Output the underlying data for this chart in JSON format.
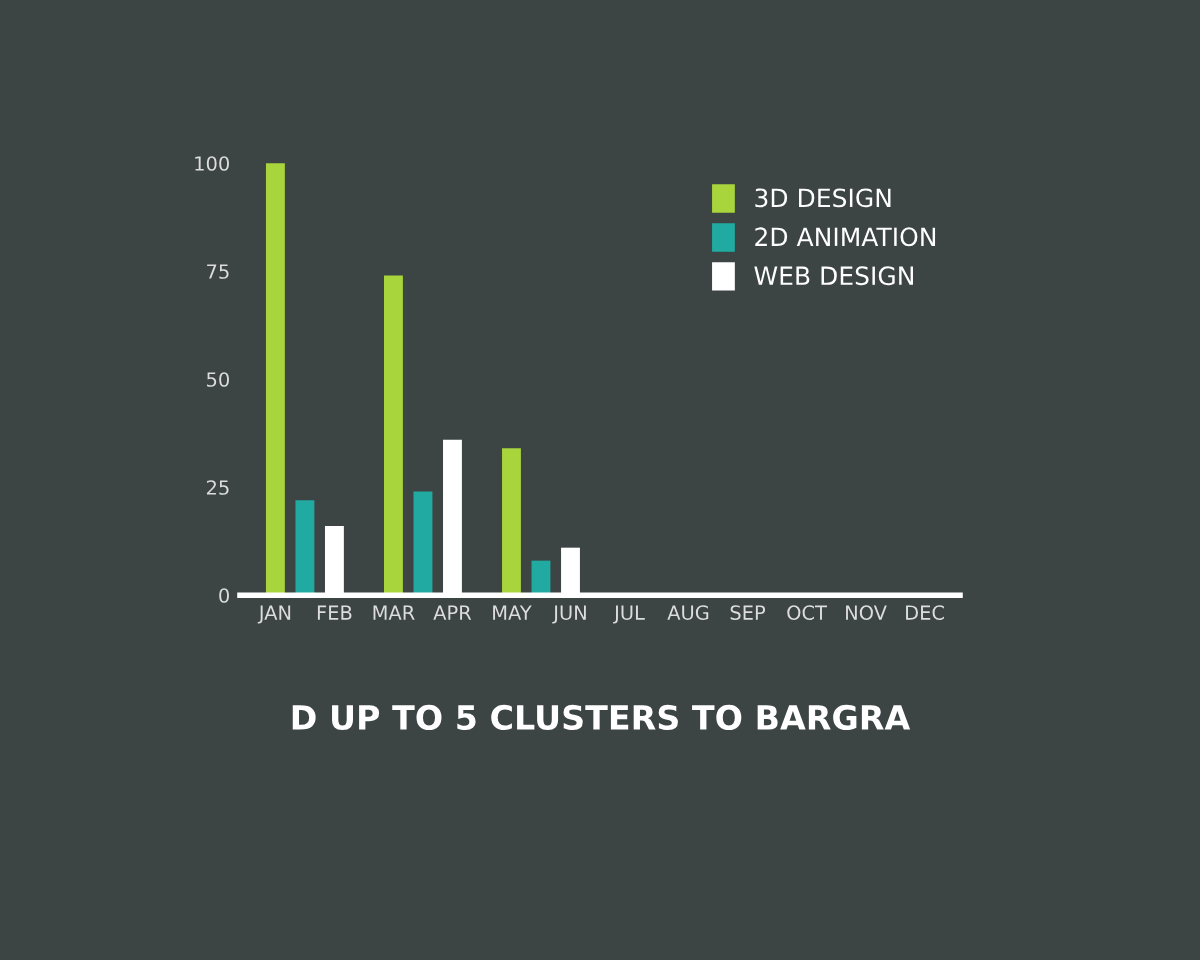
{
  "chart_data": {
    "type": "bar",
    "subtitle": "D UP TO 5 CLUSTERS TO BARGRA",
    "categories": [
      "JAN",
      "FEB",
      "MAR",
      "APR",
      "MAY",
      "JUN",
      "JUL",
      "AUG",
      "SEP",
      "OCT",
      "NOV",
      "DEC"
    ],
    "series": [
      {
        "name": "3D DESIGN",
        "color": "#a8d43c",
        "values": [
          100,
          null,
          74,
          null,
          34,
          null,
          null,
          null,
          null,
          null,
          null,
          null
        ]
      },
      {
        "name": "2D ANIMATION",
        "color": "#21aaa2",
        "values": [
          22,
          null,
          24,
          null,
          8,
          null,
          null,
          null,
          null,
          null,
          null,
          null
        ]
      },
      {
        "name": "WEB DESIGN",
        "color": "#ffffff",
        "values": [
          null,
          16,
          null,
          36,
          null,
          11,
          null,
          null,
          null,
          null,
          null,
          null
        ]
      }
    ],
    "ylim": [
      0,
      100
    ],
    "yticks": [
      0,
      25,
      50,
      75,
      100
    ],
    "legend": "top right"
  }
}
